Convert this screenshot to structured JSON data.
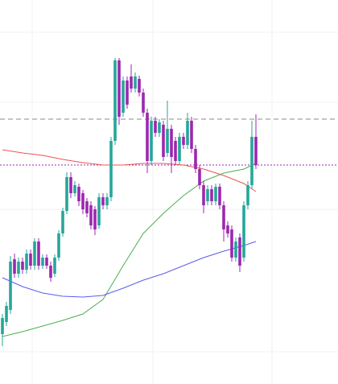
{
  "chart_data": {
    "type": "candlestick",
    "xlim": [
      -0.6,
      83.4
    ],
    "ylim": [
      0,
      477
    ],
    "up_color": "#26a69a",
    "down_color": "#9c27b0",
    "open": [
      62,
      77,
      92,
      155,
      137,
      152,
      142,
      162,
      147,
      177,
      147,
      157,
      147,
      137,
      157,
      187,
      215,
      257,
      237,
      245,
      237,
      227,
      222,
      217,
      197,
      232,
      222,
      232,
      302,
      402,
      337,
      377,
      382,
      367,
      379,
      362,
      337,
      277,
      327,
      312,
      322,
      287,
      317,
      302,
      277,
      307,
      297,
      327,
      292,
      267,
      247,
      227,
      242,
      227,
      245,
      222,
      197,
      192,
      157,
      182,
      157,
      222,
      247,
      307
    ],
    "high": [
      87,
      102,
      159,
      162,
      157,
      157,
      167,
      167,
      181,
      181,
      161,
      161,
      152,
      161,
      191,
      219,
      263,
      263,
      252,
      249,
      241,
      231,
      227,
      221,
      237,
      237,
      237,
      307,
      405,
      405,
      382,
      382,
      397,
      387,
      383,
      367,
      342,
      332,
      332,
      329,
      327,
      352,
      322,
      307,
      312,
      312,
      337,
      332,
      297,
      272,
      252,
      247,
      247,
      249,
      249,
      227,
      202,
      197,
      182,
      187,
      227,
      252,
      327,
      335
    ],
    "low": [
      47,
      72,
      87,
      132,
      132,
      137,
      137,
      142,
      142,
      142,
      143,
      143,
      127,
      133,
      153,
      183,
      211,
      231,
      233,
      221,
      211,
      207,
      192,
      185,
      193,
      217,
      217,
      227,
      297,
      322,
      332,
      342,
      362,
      362,
      357,
      332,
      262,
      272,
      307,
      307,
      277,
      282,
      262,
      272,
      272,
      292,
      292,
      287,
      262,
      242,
      212,
      222,
      222,
      222,
      217,
      177,
      182,
      152,
      152,
      139,
      152,
      217,
      242,
      267
    ],
    "close": [
      82,
      97,
      152,
      137,
      152,
      142,
      162,
      147,
      177,
      147,
      157,
      147,
      132,
      157,
      187,
      215,
      257,
      237,
      247,
      227,
      217,
      212,
      197,
      192,
      232,
      222,
      232,
      302,
      402,
      332,
      377,
      347,
      367,
      382,
      362,
      337,
      277,
      327,
      312,
      325,
      282,
      317,
      282,
      277,
      307,
      297,
      327,
      292,
      267,
      247,
      222,
      242,
      227,
      245,
      222,
      192,
      187,
      157,
      177,
      147,
      222,
      247,
      307,
      272
    ],
    "series": [
      {
        "color": "#ef5350",
        "x": [
          0,
          5,
          10,
          15,
          20,
          25,
          30,
          35,
          40,
          45,
          50,
          55,
          60,
          63
        ],
        "values": [
          291,
          287,
          284,
          279,
          275,
          272,
          272,
          274,
          274,
          272,
          267,
          259,
          249,
          239
        ]
      },
      {
        "color": "#4caf50",
        "x": [
          0,
          5,
          10,
          15,
          20,
          25,
          30,
          35,
          40,
          45,
          50,
          55,
          60,
          63
        ],
        "values": [
          59,
          65,
          72,
          79,
          87,
          105,
          147,
          187,
          212,
          234,
          252,
          262,
          267,
          274
        ]
      },
      {
        "color": "#5b5bf0",
        "x": [
          0,
          5,
          10,
          15,
          20,
          25,
          30,
          35,
          40,
          45,
          50,
          55,
          60,
          63
        ],
        "values": [
          132,
          121,
          113,
          109,
          108,
          110,
          119,
          129,
          137,
          147,
          157,
          165,
          172,
          177
        ]
      }
    ],
    "hlines": [
      {
        "value": 329,
        "color": "#8a8a8a",
        "style": "dashed"
      },
      {
        "value": 272,
        "color": "#9c27b0",
        "style": "dotted"
      }
    ]
  }
}
